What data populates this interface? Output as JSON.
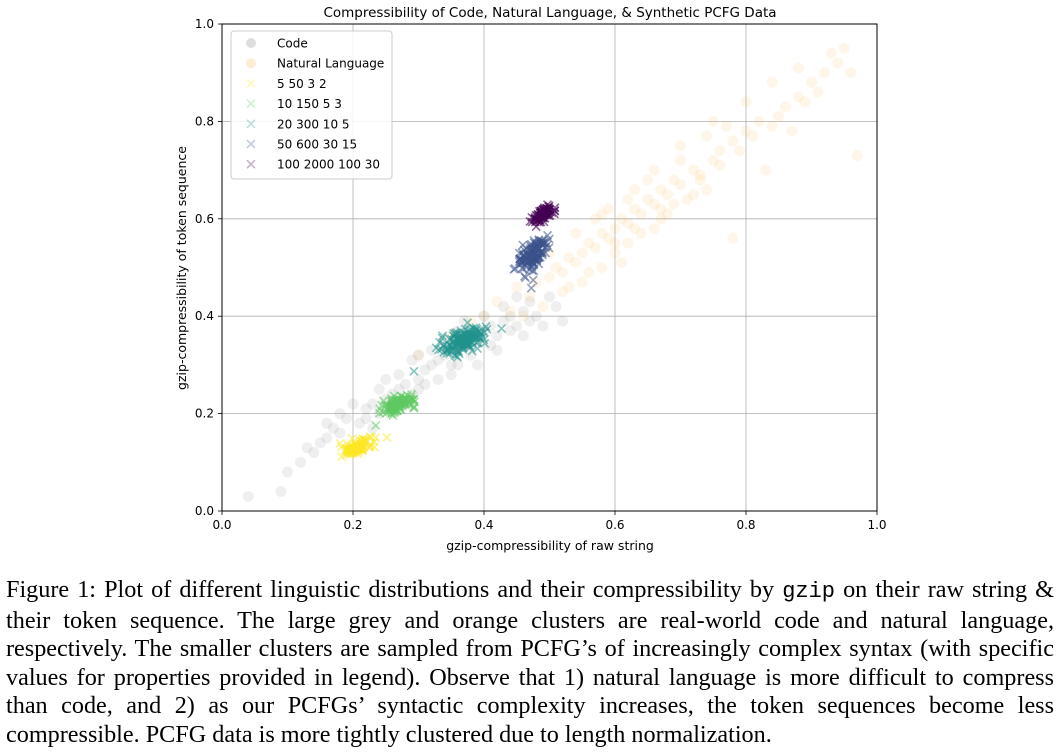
{
  "figure": {
    "caption_parts": [
      {
        "text": "Figure 1: Plot of different linguistic distributions and their compressibility by ",
        "style": "normal"
      },
      {
        "text": "gzip",
        "style": "mono"
      },
      {
        "text": " on their raw string & their token sequence. The large grey and orange clusters are real-world code and natural language, respectively. The smaller clusters are sampled from PCFG’s of increasingly complex syntax (with specific values for properties provided in legend). Observe that 1) natural language is more difficult to compress than code, and 2) as our PCFGs’ syntactic complexity increases, the token sequences become less compressible. PCFG data is more tightly clustered due to length normalization.",
        "style": "normal"
      }
    ]
  },
  "chart_data": {
    "type": "scatter",
    "title": "Compressibility of Code, Natural Language, & Synthetic PCFG Data",
    "xlabel": "gzip-compressibility of raw string",
    "ylabel": "gzip-compressibility of token sequence",
    "xlim": [
      0.0,
      1.0
    ],
    "ylim": [
      0.0,
      1.0
    ],
    "xticks": [
      "0.0",
      "0.2",
      "0.4",
      "0.6",
      "0.8",
      "1.0"
    ],
    "yticks": [
      "0.0",
      "0.2",
      "0.4",
      "0.6",
      "0.8",
      "1.0"
    ],
    "grid": true,
    "legend_position": "upper-left",
    "series": [
      {
        "name": "Code",
        "marker": "circle",
        "color": "#808080",
        "opacity": 0.13,
        "points": [
          [
            0.04,
            0.03
          ],
          [
            0.09,
            0.04
          ],
          [
            0.1,
            0.08
          ],
          [
            0.12,
            0.1
          ],
          [
            0.14,
            0.12
          ],
          [
            0.15,
            0.14
          ],
          [
            0.16,
            0.15
          ],
          [
            0.17,
            0.17
          ],
          [
            0.18,
            0.16
          ],
          [
            0.19,
            0.19
          ],
          [
            0.21,
            0.18
          ],
          [
            0.22,
            0.21
          ],
          [
            0.23,
            0.22
          ],
          [
            0.24,
            0.2
          ],
          [
            0.25,
            0.23
          ],
          [
            0.26,
            0.24
          ],
          [
            0.27,
            0.25
          ],
          [
            0.28,
            0.26
          ],
          [
            0.29,
            0.24
          ],
          [
            0.3,
            0.27
          ],
          [
            0.31,
            0.29
          ],
          [
            0.32,
            0.3
          ],
          [
            0.33,
            0.31
          ],
          [
            0.34,
            0.32
          ],
          [
            0.35,
            0.3
          ],
          [
            0.36,
            0.33
          ],
          [
            0.37,
            0.34
          ],
          [
            0.38,
            0.36
          ],
          [
            0.39,
            0.35
          ],
          [
            0.4,
            0.37
          ],
          [
            0.41,
            0.38
          ],
          [
            0.42,
            0.36
          ],
          [
            0.43,
            0.39
          ],
          [
            0.44,
            0.4
          ],
          [
            0.45,
            0.38
          ],
          [
            0.46,
            0.41
          ],
          [
            0.47,
            0.43
          ],
          [
            0.48,
            0.4
          ],
          [
            0.5,
            0.44
          ],
          [
            0.52,
            0.39
          ],
          [
            0.2,
            0.22
          ],
          [
            0.24,
            0.25
          ],
          [
            0.27,
            0.28
          ],
          [
            0.3,
            0.25
          ],
          [
            0.33,
            0.27
          ],
          [
            0.36,
            0.3
          ],
          [
            0.38,
            0.32
          ],
          [
            0.26,
            0.21
          ],
          [
            0.22,
            0.19
          ],
          [
            0.34,
            0.35
          ],
          [
            0.41,
            0.34
          ],
          [
            0.44,
            0.37
          ],
          [
            0.29,
            0.31
          ],
          [
            0.31,
            0.26
          ],
          [
            0.37,
            0.39
          ],
          [
            0.43,
            0.42
          ],
          [
            0.46,
            0.36
          ],
          [
            0.49,
            0.38
          ],
          [
            0.18,
            0.2
          ],
          [
            0.13,
            0.13
          ],
          [
            0.35,
            0.28
          ],
          [
            0.4,
            0.4
          ],
          [
            0.28,
            0.22
          ],
          [
            0.32,
            0.33
          ],
          [
            0.45,
            0.44
          ],
          [
            0.25,
            0.27
          ],
          [
            0.39,
            0.3
          ],
          [
            0.47,
            0.39
          ],
          [
            0.51,
            0.42
          ],
          [
            0.42,
            0.33
          ],
          [
            0.16,
            0.18
          ],
          [
            0.23,
            0.17
          ],
          [
            0.36,
            0.37
          ],
          [
            0.3,
            0.32
          ]
        ]
      },
      {
        "name": "Natural Language",
        "marker": "circle",
        "color": "#f5a623",
        "opacity": 0.1,
        "points": [
          [
            0.3,
            0.32
          ],
          [
            0.35,
            0.36
          ],
          [
            0.38,
            0.39
          ],
          [
            0.4,
            0.4
          ],
          [
            0.42,
            0.43
          ],
          [
            0.44,
            0.41
          ],
          [
            0.45,
            0.46
          ],
          [
            0.47,
            0.44
          ],
          [
            0.48,
            0.47
          ],
          [
            0.5,
            0.48
          ],
          [
            0.51,
            0.5
          ],
          [
            0.52,
            0.49
          ],
          [
            0.53,
            0.52
          ],
          [
            0.54,
            0.51
          ],
          [
            0.55,
            0.53
          ],
          [
            0.56,
            0.55
          ],
          [
            0.57,
            0.54
          ],
          [
            0.58,
            0.57
          ],
          [
            0.59,
            0.56
          ],
          [
            0.6,
            0.58
          ],
          [
            0.61,
            0.6
          ],
          [
            0.62,
            0.59
          ],
          [
            0.63,
            0.62
          ],
          [
            0.64,
            0.61
          ],
          [
            0.65,
            0.64
          ],
          [
            0.66,
            0.63
          ],
          [
            0.67,
            0.66
          ],
          [
            0.68,
            0.65
          ],
          [
            0.69,
            0.68
          ],
          [
            0.7,
            0.67
          ],
          [
            0.72,
            0.7
          ],
          [
            0.73,
            0.69
          ],
          [
            0.75,
            0.72
          ],
          [
            0.76,
            0.74
          ],
          [
            0.78,
            0.76
          ],
          [
            0.8,
            0.78
          ],
          [
            0.82,
            0.8
          ],
          [
            0.84,
            0.79
          ],
          [
            0.86,
            0.83
          ],
          [
            0.88,
            0.85
          ],
          [
            0.9,
            0.88
          ],
          [
            0.92,
            0.9
          ],
          [
            0.94,
            0.92
          ],
          [
            0.96,
            0.9
          ],
          [
            0.58,
            0.5
          ],
          [
            0.6,
            0.53
          ],
          [
            0.62,
            0.55
          ],
          [
            0.55,
            0.47
          ],
          [
            0.64,
            0.57
          ],
          [
            0.66,
            0.58
          ],
          [
            0.68,
            0.61
          ],
          [
            0.52,
            0.45
          ],
          [
            0.57,
            0.6
          ],
          [
            0.59,
            0.62
          ],
          [
            0.63,
            0.66
          ],
          [
            0.65,
            0.68
          ],
          [
            0.7,
            0.72
          ],
          [
            0.74,
            0.77
          ],
          [
            0.77,
            0.79
          ],
          [
            0.71,
            0.64
          ],
          [
            0.74,
            0.66
          ],
          [
            0.79,
            0.74
          ],
          [
            0.81,
            0.77
          ],
          [
            0.85,
            0.81
          ],
          [
            0.87,
            0.78
          ],
          [
            0.89,
            0.84
          ],
          [
            0.91,
            0.86
          ],
          [
            0.93,
            0.94
          ],
          [
            0.95,
            0.95
          ],
          [
            0.97,
            0.73
          ],
          [
            0.83,
            0.7
          ],
          [
            0.78,
            0.56
          ],
          [
            0.49,
            0.42
          ],
          [
            0.46,
            0.4
          ],
          [
            0.53,
            0.46
          ],
          [
            0.56,
            0.49
          ],
          [
            0.61,
            0.51
          ],
          [
            0.67,
            0.6
          ],
          [
            0.69,
            0.63
          ],
          [
            0.72,
            0.65
          ],
          [
            0.5,
            0.53
          ],
          [
            0.54,
            0.57
          ],
          [
            0.58,
            0.61
          ],
          [
            0.62,
            0.64
          ],
          [
            0.66,
            0.7
          ],
          [
            0.7,
            0.75
          ],
          [
            0.75,
            0.8
          ],
          [
            0.8,
            0.84
          ],
          [
            0.84,
            0.88
          ],
          [
            0.88,
            0.91
          ],
          [
            0.6,
            0.55
          ],
          [
            0.63,
            0.58
          ],
          [
            0.67,
            0.62
          ],
          [
            0.73,
            0.68
          ],
          [
            0.76,
            0.71
          ]
        ]
      },
      {
        "name": "5 50 3 2",
        "marker": "x",
        "color": "#fde725",
        "opacity": 0.55,
        "center": [
          0.205,
          0.13
        ],
        "spread": [
          0.012,
          0.008
        ],
        "count": 110
      },
      {
        "name": "10 150 5 3",
        "marker": "x",
        "color": "#5ec962",
        "opacity": 0.55,
        "center": [
          0.27,
          0.22
        ],
        "spread": [
          0.013,
          0.01
        ],
        "count": 110
      },
      {
        "name": "20 300 10 5",
        "marker": "x",
        "color": "#21918c",
        "opacity": 0.55,
        "center": [
          0.37,
          0.35
        ],
        "spread": [
          0.018,
          0.014
        ],
        "count": 150
      },
      {
        "name": "50 600 30 15",
        "marker": "x",
        "color": "#3b528b",
        "opacity": 0.55,
        "center": [
          0.475,
          0.525
        ],
        "spread": [
          0.012,
          0.02
        ],
        "count": 130
      },
      {
        "name": "100 2000 100 30",
        "marker": "x",
        "color": "#440154",
        "opacity": 0.6,
        "center": [
          0.49,
          0.61
        ],
        "spread": [
          0.008,
          0.009
        ],
        "count": 90
      }
    ]
  }
}
